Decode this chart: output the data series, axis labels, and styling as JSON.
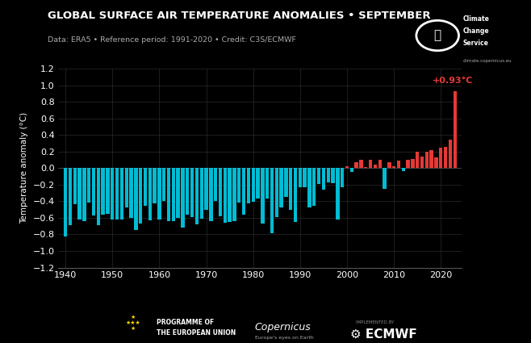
{
  "title": "GLOBAL SURFACE AIR TEMPERATURE ANOMALIES • SEPTEMBER",
  "subtitle": "Data: ERA5 • Reference period: 1991-2020 • Credit: C3S/ECMWF",
  "ylabel": "Temperature anomaly (°C)",
  "years": [
    1940,
    1941,
    1942,
    1943,
    1944,
    1945,
    1946,
    1947,
    1948,
    1949,
    1950,
    1951,
    1952,
    1953,
    1954,
    1955,
    1956,
    1957,
    1958,
    1959,
    1960,
    1961,
    1962,
    1963,
    1964,
    1965,
    1966,
    1967,
    1968,
    1969,
    1970,
    1971,
    1972,
    1973,
    1974,
    1975,
    1976,
    1977,
    1978,
    1979,
    1980,
    1981,
    1982,
    1983,
    1984,
    1985,
    1986,
    1987,
    1988,
    1989,
    1990,
    1991,
    1992,
    1993,
    1994,
    1995,
    1996,
    1997,
    1998,
    1999,
    2000,
    2001,
    2002,
    2003,
    2004,
    2005,
    2006,
    2007,
    2008,
    2009,
    2010,
    2011,
    2012,
    2013,
    2014,
    2015,
    2016,
    2017,
    2018,
    2019,
    2020,
    2021,
    2022,
    2023
  ],
  "values": [
    -0.83,
    -0.69,
    -0.44,
    -0.62,
    -0.64,
    -0.42,
    -0.57,
    -0.69,
    -0.56,
    -0.55,
    -0.62,
    -0.62,
    -0.62,
    -0.47,
    -0.6,
    -0.75,
    -0.67,
    -0.46,
    -0.63,
    -0.43,
    -0.62,
    -0.4,
    -0.64,
    -0.64,
    -0.6,
    -0.72,
    -0.56,
    -0.59,
    -0.68,
    -0.61,
    -0.5,
    -0.64,
    -0.4,
    -0.58,
    -0.66,
    -0.65,
    -0.64,
    -0.42,
    -0.56,
    -0.43,
    -0.41,
    -0.37,
    -0.67,
    -0.37,
    -0.79,
    -0.59,
    -0.47,
    -0.35,
    -0.5,
    -0.65,
    -0.23,
    -0.23,
    -0.47,
    -0.46,
    -0.19,
    -0.26,
    -0.17,
    -0.18,
    -0.62,
    -0.23,
    0.02,
    -0.05,
    0.07,
    0.1,
    0.01,
    0.1,
    0.04,
    0.1,
    -0.25,
    0.07,
    0.02,
    0.09,
    -0.04,
    0.1,
    0.11,
    0.2,
    0.14,
    0.2,
    0.22,
    0.13,
    0.25,
    0.26,
    0.34,
    0.93
  ],
  "anomaly_label": "+0.93°C",
  "bg_color": "#000000",
  "bar_color_negative": "#00bcd4",
  "bar_color_positive": "#e53935",
  "grid_color": "#2a2a2a",
  "text_color": "#ffffff",
  "subtitle_color": "#aaaaaa",
  "ylim": [
    -1.2,
    1.2
  ],
  "xlim": [
    1938.5,
    2024.5
  ],
  "yticks": [
    -1.2,
    -1.0,
    -0.8,
    -0.6,
    -0.4,
    -0.2,
    0.0,
    0.2,
    0.4,
    0.6,
    0.8,
    1.0,
    1.2
  ],
  "xticks": [
    1940,
    1950,
    1960,
    1970,
    1980,
    1990,
    2000,
    2010,
    2020
  ]
}
